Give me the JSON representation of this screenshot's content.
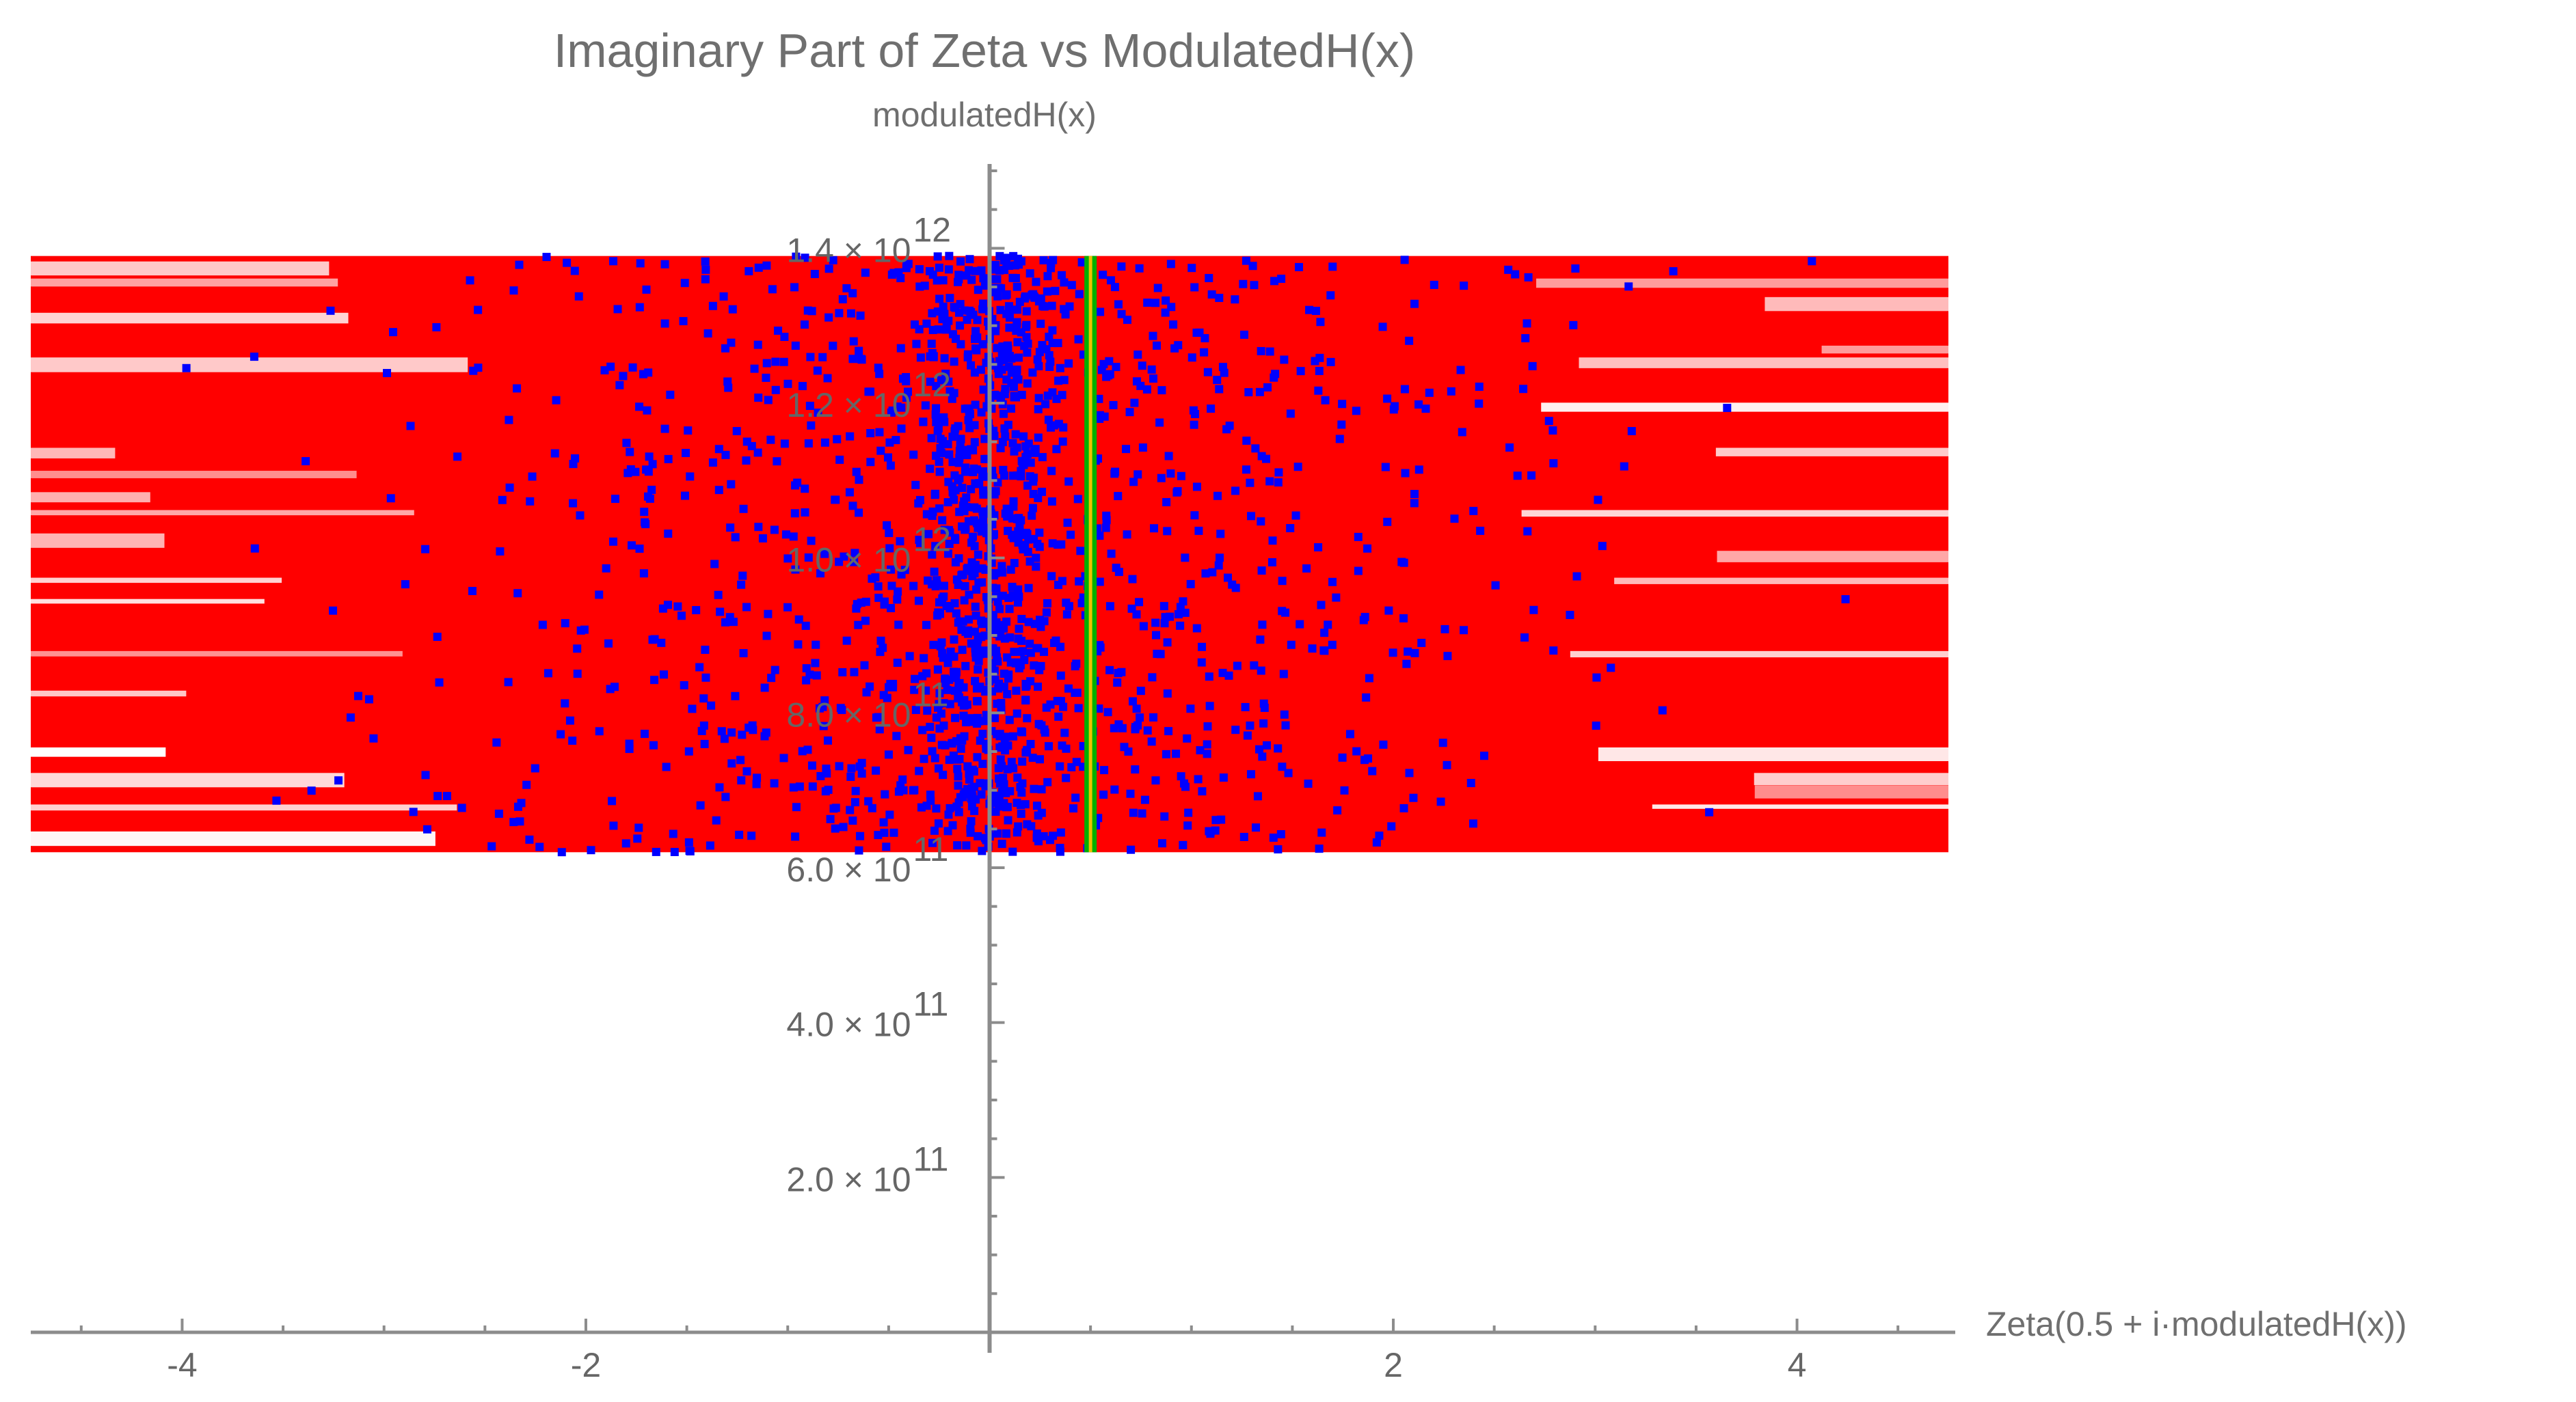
{
  "chart_data": {
    "type": "scatter",
    "title": "Imaginary Part of Zeta vs ModulatedH(x)",
    "xlabel": "Zeta(0.5 + i·modulatedH(x))",
    "ylabel": "modulatedH(x)",
    "xlim": [
      -4.75,
      4.75
    ],
    "ylim": [
      0,
      1500000000000.0
    ],
    "grid": false,
    "x_ticks": [
      {
        "value": -4,
        "label": "-4"
      },
      {
        "value": -2,
        "label": "-2"
      },
      {
        "value": 2,
        "label": "2"
      },
      {
        "value": 4,
        "label": "4"
      }
    ],
    "y_ticks": [
      {
        "value": 200000000000.0,
        "mantissa": "2.0 × 10",
        "exp": "11"
      },
      {
        "value": 400000000000.0,
        "mantissa": "4.0 × 10",
        "exp": "11"
      },
      {
        "value": 600000000000.0,
        "mantissa": "6.0 × 10",
        "exp": "11"
      },
      {
        "value": 800000000000.0,
        "mantissa": "8.0 × 10",
        "exp": "11"
      },
      {
        "value": 1000000000000.0,
        "mantissa": "1.0 × 10",
        "exp": "12"
      },
      {
        "value": 1200000000000.0,
        "mantissa": "1.2 × 10",
        "exp": "12"
      },
      {
        "value": 1400000000000.0,
        "mantissa": "1.4 × 10",
        "exp": "12"
      }
    ],
    "band": {
      "color": "#ff0000",
      "x_range": [
        -4.75,
        4.75
      ],
      "y_range": [
        620000000000.0,
        1390000000000.0
      ]
    },
    "vertical_lines": [
      {
        "x": 0.5,
        "color": "#00b000"
      },
      {
        "x": 0.5,
        "color": "#f0c000"
      }
    ],
    "series": [
      {
        "color": "#0000ff",
        "point_count": 1800,
        "x_center": 0.0,
        "x_spread": 1.3,
        "y_range": [
          620000000000.0,
          1390000000000.0
        ]
      }
    ],
    "colors": {
      "band": "#ff0000",
      "points": "#0000ff",
      "critical_line": "#00b000",
      "axis": "#8c8c8c",
      "text": "#6f6f6f"
    }
  }
}
